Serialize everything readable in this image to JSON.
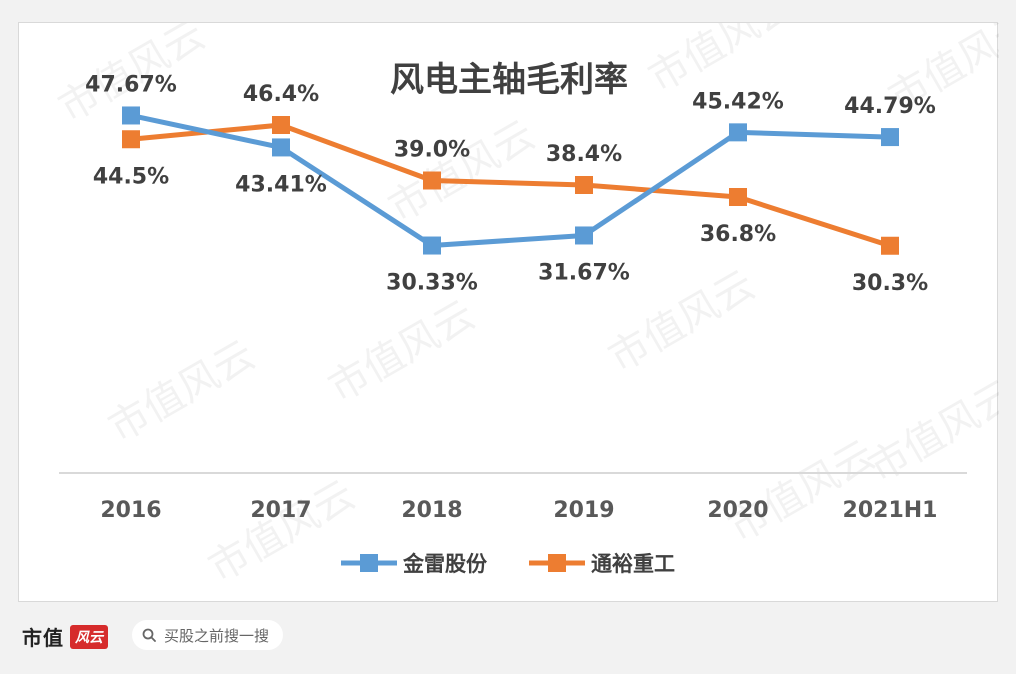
{
  "chart_data": {
    "type": "line",
    "title": "风电主轴毛利率",
    "categories": [
      "2016",
      "2017",
      "2018",
      "2019",
      "2020",
      "2021H1"
    ],
    "series": [
      {
        "name": "金雷股份",
        "color": "#5b9bd5",
        "values": [
          47.67,
          43.41,
          30.33,
          31.67,
          45.42,
          44.79
        ],
        "labels": [
          "47.67%",
          "43.41%",
          "30.33%",
          "31.67%",
          "45.42%",
          "44.79%"
        ]
      },
      {
        "name": "通裕重工",
        "color": "#ed7d31",
        "values": [
          44.5,
          46.4,
          39.0,
          38.4,
          36.8,
          30.3
        ],
        "labels": [
          "44.5%",
          "46.4%",
          "39.0%",
          "38.4%",
          "36.8%",
          "30.3%"
        ]
      }
    ],
    "ylim": [
      0,
      60
    ],
    "grid": false,
    "legend_position": "bottom"
  },
  "footer": {
    "brand": "市值",
    "brand_badge": "风云",
    "search_placeholder": "买股之前搜一搜"
  },
  "watermark": "市值风云"
}
